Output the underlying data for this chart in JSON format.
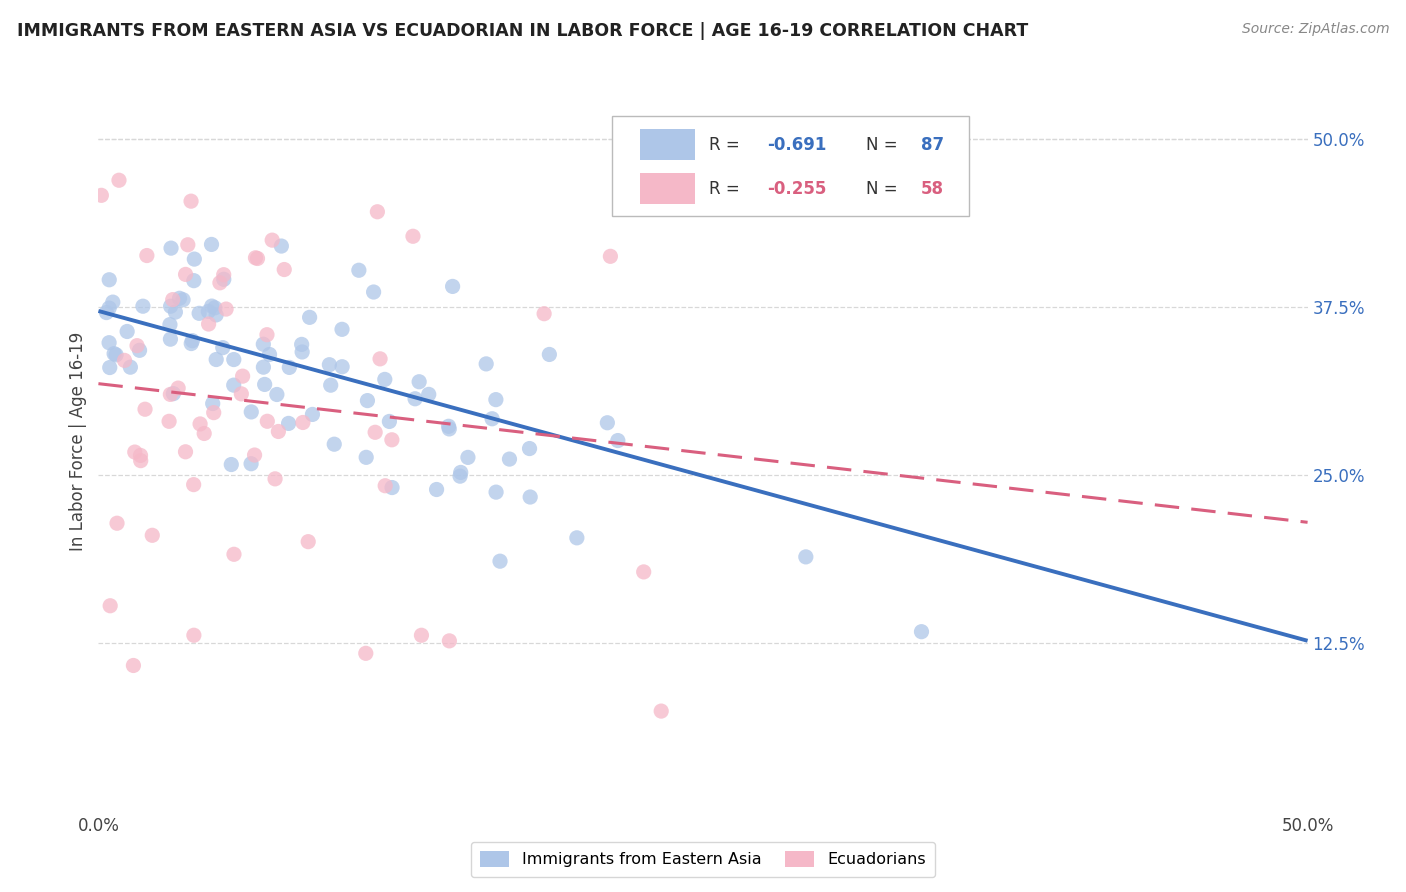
{
  "title": "IMMIGRANTS FROM EASTERN ASIA VS ECUADORIAN IN LABOR FORCE | AGE 16-19 CORRELATION CHART",
  "source": "Source: ZipAtlas.com",
  "ylabel_label": "In Labor Force | Age 16-19",
  "xlim": [
    0.0,
    0.5
  ],
  "ylim": [
    0.0,
    0.55
  ],
  "x_ticks": [
    0.0,
    0.1,
    0.2,
    0.3,
    0.4,
    0.5
  ],
  "x_tick_labels": [
    "0.0%",
    "",
    "",
    "",
    "",
    "50.0%"
  ],
  "y_ticks_right": [
    0.125,
    0.25,
    0.375,
    0.5
  ],
  "y_tick_labels_right": [
    "12.5%",
    "25.0%",
    "37.5%",
    "50.0%"
  ],
  "R_blue": -0.691,
  "N_blue": 87,
  "R_pink": -0.255,
  "N_pink": 58,
  "blue_color": "#aec6e8",
  "blue_line_color": "#3a6fbe",
  "pink_color": "#f5b8c8",
  "pink_line_color": "#d95f7f",
  "marker_size": 120,
  "grid_color": "#d8d8d8",
  "background_color": "#ffffff",
  "legend_label_blue": "Immigrants from Eastern Asia",
  "legend_label_pink": "Ecuadorians",
  "blue_line_y0": 0.372,
  "blue_line_y1": 0.127,
  "pink_line_y0": 0.318,
  "pink_line_y1": 0.215,
  "seed_blue": 7,
  "seed_pink": 21
}
